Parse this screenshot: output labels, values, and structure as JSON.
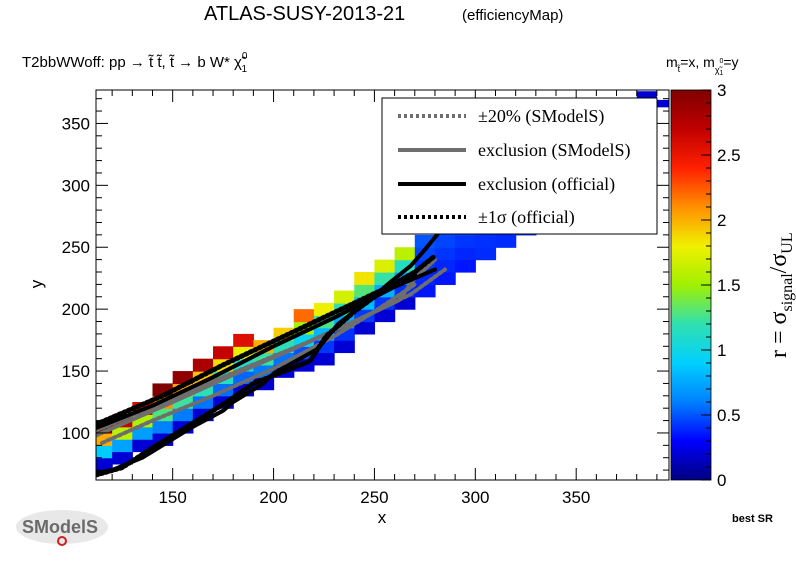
{
  "header": {
    "title": "ATLAS-SUSY-2013-21",
    "subtitle": "(efficiencyMap)",
    "process": "T2bbWWoff: pp  → t̃ t̃, t̃  → b W*  χ̃",
    "process_sup": "0",
    "process_sub": "1",
    "mass_label_1": "m",
    "mass_sub_1": "t̃",
    "mass_eq_1": "=x, m",
    "mass_sub_2": "χ̃",
    "mass_sub_2_sup": "0",
    "mass_sub_2_sub": "1",
    "mass_eq_2": "=y"
  },
  "footer": {
    "best_sr": "best SR",
    "logo_text": "SModelS"
  },
  "colorbar": {
    "label_main": "r = σ",
    "label_sub1": "signal",
    "label_slash": "/σ",
    "label_sub2": "UL",
    "ticks": [
      "0",
      "0.5",
      "1",
      "1.5",
      "2",
      "2.5",
      "3"
    ],
    "stops": [
      "#000080",
      "#0000ff",
      "#0080ff",
      "#00d0ff",
      "#30e0b0",
      "#a0f000",
      "#f0f000",
      "#ff9000",
      "#ff2000",
      "#c00000",
      "#800000"
    ]
  },
  "legend": {
    "entries": [
      {
        "label": "±20% (SModelS)",
        "style": "dotted-gray",
        "color": "#6e6e6e"
      },
      {
        "label": "exclusion (SModelS)",
        "style": "solid-gray",
        "color": "#6e6e6e"
      },
      {
        "label": "exclusion (official)",
        "style": "solid-black",
        "color": "#000000"
      },
      {
        "label": "±1σ (official)",
        "style": "dotted-black",
        "color": "#000000"
      }
    ]
  },
  "chart_data": {
    "type": "heatmap",
    "title": "ATLAS-SUSY-2013-21",
    "xlabel": "x",
    "ylabel": "y",
    "xlim": [
      112,
      396
    ],
    "ylim": [
      62,
      377
    ],
    "zlim": [
      0,
      3
    ],
    "x_ticks": [
      150,
      200,
      250,
      300,
      350
    ],
    "y_ticks": [
      100,
      150,
      200,
      250,
      300,
      350
    ],
    "grid": false,
    "legend_position": "top-right",
    "cell_size": 10,
    "bands": [
      {
        "x": 115,
        "ymin": 75,
        "ymax": 105
      },
      {
        "x": 125,
        "ymin": 80,
        "ymax": 115
      },
      {
        "x": 135,
        "ymin": 90,
        "ymax": 125
      },
      {
        "x": 145,
        "ymin": 95,
        "ymax": 135
      },
      {
        "x": 155,
        "ymin": 105,
        "ymax": 145
      },
      {
        "x": 165,
        "ymin": 115,
        "ymax": 155
      },
      {
        "x": 175,
        "ymin": 125,
        "ymax": 165
      },
      {
        "x": 185,
        "ymin": 135,
        "ymax": 175
      },
      {
        "x": 195,
        "ymin": 140,
        "ymax": 175
      },
      {
        "x": 205,
        "ymin": 150,
        "ymax": 185
      },
      {
        "x": 215,
        "ymin": 155,
        "ymax": 195
      },
      {
        "x": 225,
        "ymin": 160,
        "ymax": 205
      },
      {
        "x": 235,
        "ymin": 170,
        "ymax": 215
      },
      {
        "x": 245,
        "ymin": 185,
        "ymax": 225
      },
      {
        "x": 255,
        "ymin": 195,
        "ymax": 235
      },
      {
        "x": 265,
        "ymin": 205,
        "ymax": 245
      },
      {
        "x": 275,
        "ymin": 215,
        "ymax": 255
      },
      {
        "x": 285,
        "ymin": 225,
        "ymax": 265
      },
      {
        "x": 295,
        "ymin": 235,
        "ymax": 275
      },
      {
        "x": 305,
        "ymin": 245,
        "ymax": 285
      },
      {
        "x": 315,
        "ymin": 255,
        "ymax": 295
      },
      {
        "x": 325,
        "ymin": 265,
        "ymax": 305
      },
      {
        "x": 335,
        "ymin": 275,
        "ymax": 315
      },
      {
        "x": 345,
        "ymin": 285,
        "ymax": 325
      },
      {
        "x": 355,
        "ymin": 295,
        "ymax": 335
      },
      {
        "x": 365,
        "ymin": 305,
        "ymax": 345
      },
      {
        "x": 375,
        "ymin": 315,
        "ymax": 355
      },
      {
        "x": 385,
        "ymin": 325,
        "ymax": 365
      }
    ],
    "extra_cells": [
      {
        "x": 385,
        "y": 373,
        "r": 0.2
      },
      {
        "x": 395,
        "y": 366,
        "r": 0.2
      }
    ],
    "contours": {
      "official_exclusion": [
        [
          112,
          104
        ],
        [
          140,
          122
        ],
        [
          170,
          145
        ],
        [
          200,
          170
        ],
        [
          230,
          193
        ],
        [
          260,
          218
        ],
        [
          280,
          232
        ]
      ],
      "official_lower": [
        [
          112,
          68
        ],
        [
          120,
          70
        ],
        [
          135,
          80
        ],
        [
          160,
          105
        ],
        [
          175,
          118
        ],
        [
          180,
          125
        ],
        [
          195,
          140
        ],
        [
          200,
          148
        ],
        [
          222,
          168
        ],
        [
          232,
          188
        ],
        [
          248,
          208
        ],
        [
          258,
          222
        ],
        [
          268,
          235
        ],
        [
          275,
          248
        ],
        [
          282,
          262
        ]
      ],
      "official_upper_sigma": [
        [
          112,
          107
        ],
        [
          145,
          130
        ],
        [
          175,
          155
        ],
        [
          205,
          178
        ],
        [
          240,
          205
        ],
        [
          270,
          228
        ]
      ],
      "official_lower_sigma": [
        [
          112,
          66
        ],
        [
          125,
          72
        ],
        [
          140,
          88
        ],
        [
          162,
          110
        ],
        [
          176,
          124
        ],
        [
          190,
          140
        ],
        [
          218,
          158
        ],
        [
          226,
          178
        ],
        [
          240,
          198
        ],
        [
          256,
          217
        ],
        [
          270,
          230
        ],
        [
          280,
          243
        ]
      ],
      "smodels_exclusion": [
        [
          112,
          98
        ],
        [
          150,
          125
        ],
        [
          180,
          147
        ],
        [
          210,
          168
        ],
        [
          240,
          190
        ],
        [
          262,
          207
        ],
        [
          270,
          225
        ],
        [
          280,
          240
        ]
      ],
      "smodels_band_upper": [
        [
          112,
          102
        ],
        [
          150,
          128
        ],
        [
          185,
          152
        ],
        [
          215,
          172
        ],
        [
          245,
          194
        ],
        [
          268,
          212
        ],
        [
          285,
          232
        ]
      ],
      "smodels_band_lower": [
        [
          115,
          92
        ],
        [
          140,
          110
        ],
        [
          170,
          130
        ],
        [
          200,
          152
        ],
        [
          230,
          178
        ],
        [
          250,
          198
        ],
        [
          270,
          220
        ]
      ]
    }
  }
}
